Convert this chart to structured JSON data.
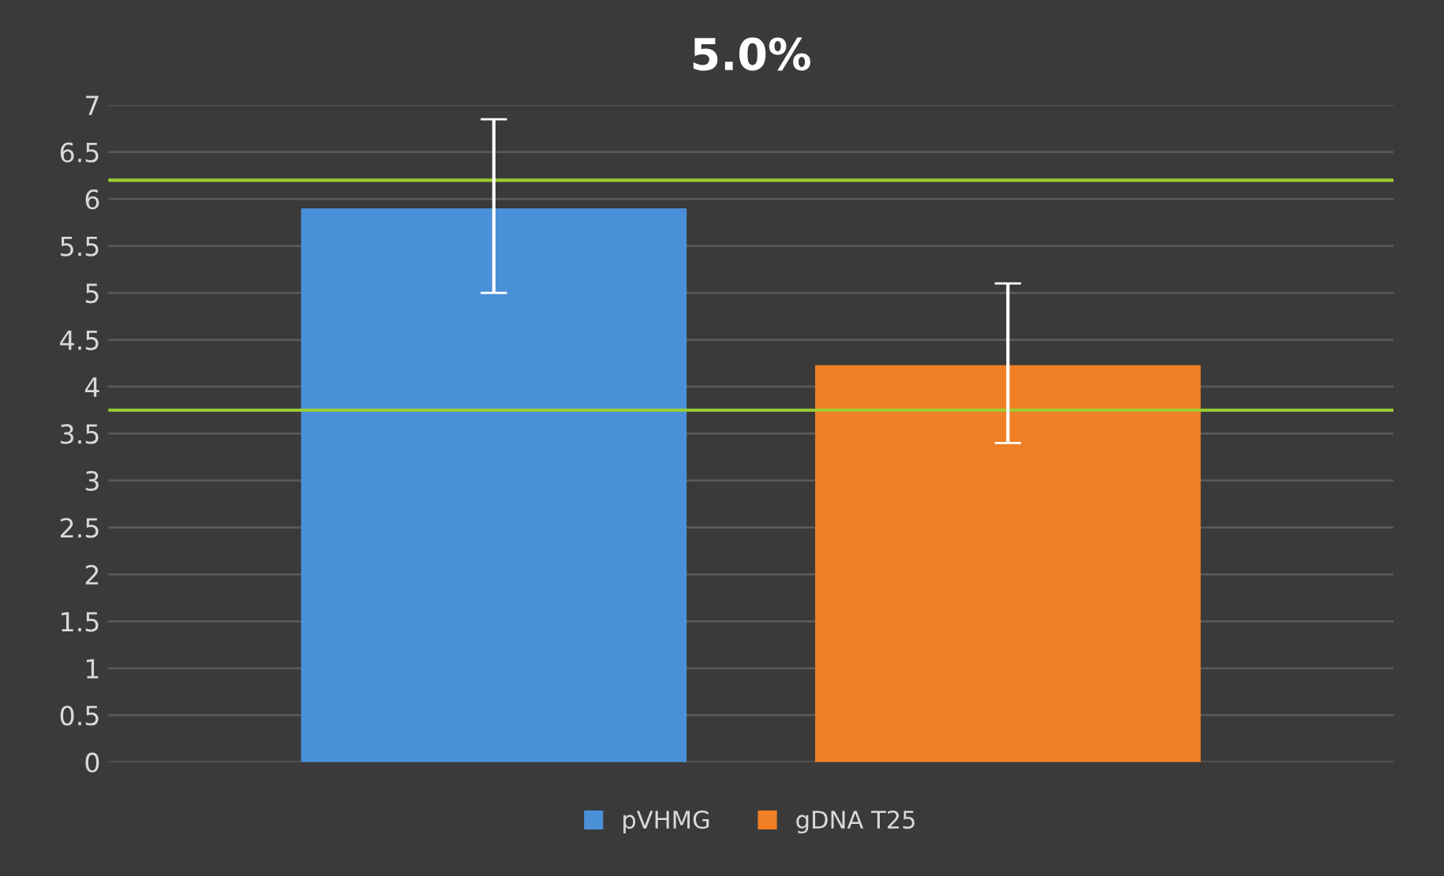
{
  "chart_data": {
    "type": "bar",
    "title": "5.0%",
    "categories": [
      null
    ],
    "series": [
      {
        "name": "pVHMG",
        "color": "#4a90d9",
        "values": [
          5.9
        ],
        "errors": [
          [
            5.0,
            6.85
          ]
        ]
      },
      {
        "name": "gDNA T25",
        "color": "#f07f25",
        "values": [
          4.23
        ],
        "errors": [
          [
            3.4,
            5.1
          ]
        ]
      }
    ],
    "ylim": [
      0,
      7
    ],
    "yticks": [
      0,
      0.5,
      1,
      1.5,
      2,
      2.5,
      3,
      3.5,
      4,
      4.5,
      5,
      5.5,
      6,
      6.5,
      7
    ],
    "ref_lines": [
      {
        "axis": "y",
        "value": 6.2,
        "color": "#9acd32"
      },
      {
        "axis": "y",
        "value": 3.75,
        "color": "#9acd32"
      }
    ],
    "grid": "y",
    "legend": "bottom"
  }
}
